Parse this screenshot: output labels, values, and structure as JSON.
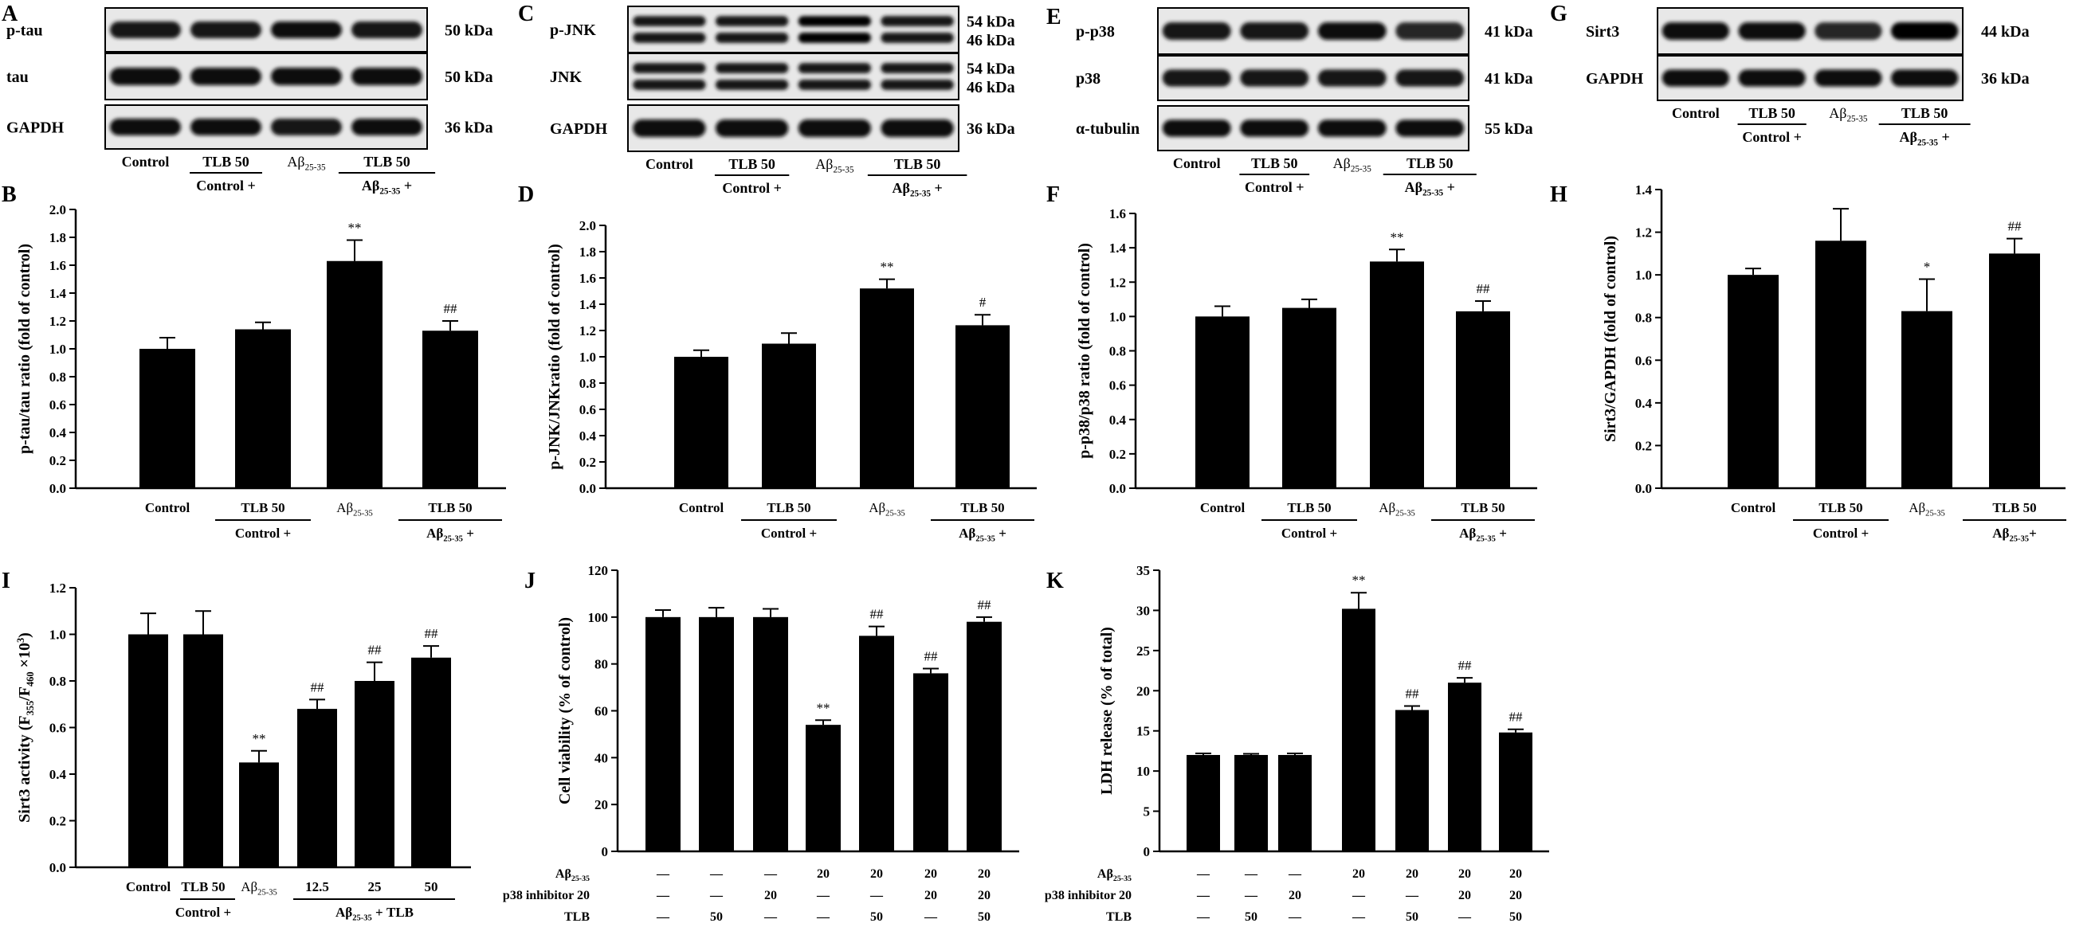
{
  "blots": [
    {
      "letter": "A",
      "rows": [
        {
          "label": "p-tau",
          "kda": [
            "50 kDa"
          ],
          "bands": 1
        },
        {
          "label": "tau",
          "kda": [
            "50 kDa"
          ],
          "bands": 1
        },
        {
          "label": "GAPDH",
          "kda": [
            "36 kDa"
          ],
          "bands": 1
        }
      ],
      "lanes": [
        "Control",
        "TLB 50",
        "Aβ25-35",
        "TLB 50"
      ],
      "group_labels": [
        "Control +",
        "Aβ25-35 +"
      ],
      "band_intensity": [
        [
          0.8,
          0.85,
          0.9,
          0.85
        ],
        [
          0.9,
          0.9,
          0.9,
          0.9
        ],
        [
          0.9,
          0.9,
          0.85,
          0.9
        ]
      ]
    },
    {
      "letter": "C",
      "rows": [
        {
          "label": "p-JNK",
          "kda": [
            "54 kDa",
            "46 kDa"
          ],
          "bands": 2
        },
        {
          "label": "JNK",
          "kda": [
            "54 kDa",
            "46 kDa"
          ],
          "bands": 2
        },
        {
          "label": "GAPDH",
          "kda": [
            "36 kDa"
          ],
          "bands": 1
        }
      ],
      "lanes": [
        "Control",
        "TLB 50",
        "Aβ25-35",
        "TLB 50"
      ],
      "group_labels": [
        "Control +",
        "Aβ25-35 +"
      ],
      "band_intensity": [
        [
          0.8,
          0.85,
          0.95,
          0.85
        ],
        [
          0.85,
          0.85,
          0.85,
          0.85
        ],
        [
          0.9,
          0.9,
          0.9,
          0.9
        ]
      ]
    },
    {
      "letter": "E",
      "rows": [
        {
          "label": "p-p38",
          "kda": [
            "41 kDa"
          ],
          "bands": 1
        },
        {
          "label": "p38",
          "kda": [
            "41 kDa"
          ],
          "bands": 1
        },
        {
          "label": "α-tubulin",
          "kda": [
            "55 kDa"
          ],
          "bands": 1
        }
      ],
      "lanes": [
        "Control",
        "TLB 50",
        "Aβ25-35",
        "TLB 50"
      ],
      "group_labels": [
        "Control +",
        "Aβ25-35 +"
      ],
      "band_intensity": [
        [
          0.8,
          0.8,
          0.9,
          0.7
        ],
        [
          0.85,
          0.85,
          0.85,
          0.8
        ],
        [
          0.9,
          0.9,
          0.9,
          0.9
        ]
      ]
    },
    {
      "letter": "G",
      "rows": [
        {
          "label": "Sirt3",
          "kda": [
            "44 kDa"
          ],
          "bands": 1
        },
        {
          "label": "GAPDH",
          "kda": [
            "36 kDa"
          ],
          "bands": 1
        }
      ],
      "lanes": [
        "Control",
        "TLB 50",
        "Aβ25-35",
        "TLB 50"
      ],
      "group_labels": [
        "Control +",
        "Aβ25-35 +"
      ],
      "band_intensity": [
        [
          0.9,
          0.9,
          0.7,
          0.95
        ],
        [
          0.9,
          0.9,
          0.9,
          0.9
        ]
      ]
    }
  ],
  "chart_data": [
    {
      "letter": "B",
      "type": "bar",
      "ylabel": "p-tau/tau ratio (fold of control)",
      "ylim": [
        0,
        2.0
      ],
      "ytick_step": 0.2,
      "ytick_decimals": 1,
      "categories": [
        "Control",
        "TLB 50",
        "Aβ25-35",
        "TLB 50"
      ],
      "values": [
        1.0,
        1.14,
        1.63,
        1.13
      ],
      "errors": [
        0.08,
        0.05,
        0.15,
        0.07
      ],
      "annotations": [
        "",
        "",
        "**",
        "##"
      ],
      "group_labels": [
        "Control +",
        "Aβ25-35 +"
      ]
    },
    {
      "letter": "D",
      "type": "bar",
      "ylabel": "p-JNK/JNKratio (fold of control)",
      "ylim": [
        0,
        2.0
      ],
      "ytick_step": 0.2,
      "ytick_decimals": 1,
      "categories": [
        "Control",
        "TLB 50",
        "Aβ25-35",
        "TLB 50"
      ],
      "values": [
        1.0,
        1.1,
        1.52,
        1.24
      ],
      "errors": [
        0.05,
        0.08,
        0.07,
        0.08
      ],
      "annotations": [
        "",
        "",
        "**",
        "#"
      ],
      "group_labels": [
        "Control +",
        "Aβ25-35 +"
      ]
    },
    {
      "letter": "F",
      "type": "bar",
      "ylabel": "p-p38/p38 ratio (fold of control)",
      "ylim": [
        0,
        1.6
      ],
      "ytick_step": 0.2,
      "ytick_decimals": 1,
      "categories": [
        "Control",
        "TLB 50",
        "Aβ25-35",
        "TLB 50"
      ],
      "values": [
        1.0,
        1.05,
        1.32,
        1.03
      ],
      "errors": [
        0.06,
        0.05,
        0.07,
        0.06
      ],
      "annotations": [
        "",
        "",
        "**",
        "##"
      ],
      "group_labels": [
        "Control +",
        "Aβ25-35 +"
      ]
    },
    {
      "letter": "H",
      "type": "bar",
      "ylabel": "Sirt3/GAPDH (fold of control)",
      "ylim": [
        0,
        1.4
      ],
      "ytick_step": 0.2,
      "ytick_decimals": 1,
      "categories": [
        "Control",
        "TLB 50",
        "Aβ25-35",
        "TLB 50"
      ],
      "values": [
        1.0,
        1.16,
        0.83,
        1.1
      ],
      "errors": [
        0.03,
        0.15,
        0.15,
        0.07
      ],
      "annotations": [
        "",
        "",
        "*",
        "##"
      ],
      "group_labels": [
        "Control +",
        "Aβ25-35+"
      ]
    },
    {
      "letter": "I",
      "type": "bar",
      "ylabel": "Sirt3 activity (F355/F460 ×10³)",
      "ylim": [
        0,
        1.2
      ],
      "ytick_step": 0.2,
      "ytick_decimals": 1,
      "categories": [
        "Control",
        "TLB 50",
        "Aβ25-35",
        "12.5",
        "25",
        "50"
      ],
      "values": [
        1.0,
        1.0,
        0.45,
        0.68,
        0.8,
        0.9
      ],
      "errors": [
        0.09,
        0.1,
        0.05,
        0.04,
        0.08,
        0.05
      ],
      "annotations": [
        "",
        "",
        "**",
        "##",
        "##",
        "##"
      ],
      "group_labels": [
        "Control +",
        "Aβ25-35 + TLB"
      ]
    },
    {
      "letter": "J",
      "type": "bar",
      "ylabel": "Cell viability (% of control)",
      "ylim": [
        0,
        120
      ],
      "ytick_step": 20,
      "ytick_decimals": 0,
      "values": [
        100,
        100,
        100,
        54,
        92,
        76,
        98
      ],
      "errors": [
        3,
        4,
        3.5,
        2,
        4,
        2,
        2
      ],
      "annotations": [
        "",
        "",
        "",
        "**",
        "##",
        "##",
        "##"
      ],
      "condition_rows": [
        {
          "label": "Aβ25-35",
          "cells": [
            "—",
            "—",
            "—",
            "20",
            "20",
            "20",
            "20"
          ]
        },
        {
          "label": "p38 inhibitor 20",
          "cells": [
            "—",
            "—",
            "20",
            "—",
            "—",
            "20",
            "20"
          ]
        },
        {
          "label": "TLB",
          "cells": [
            "—",
            "50",
            "—",
            "—",
            "50",
            "—",
            "50"
          ]
        }
      ]
    },
    {
      "letter": "K",
      "type": "bar",
      "ylabel": "LDH release (% of total)",
      "ylim": [
        0,
        35
      ],
      "ytick_step": 5,
      "ytick_decimals": 0,
      "values": [
        12,
        12,
        12,
        30.2,
        17.6,
        21,
        14.8
      ],
      "errors": [
        0.2,
        0.15,
        0.2,
        2,
        0.5,
        0.6,
        0.4
      ],
      "annotations": [
        "",
        "",
        "",
        "**",
        "##",
        "##",
        "##"
      ],
      "condition_rows": [
        {
          "label": "Aβ25-35",
          "cells": [
            "—",
            "—",
            "—",
            "20",
            "20",
            "20",
            "20"
          ]
        },
        {
          "label": "p38 inhibitor 20",
          "cells": [
            "—",
            "—",
            "20",
            "—",
            "—",
            "20",
            "20"
          ]
        },
        {
          "label": "TLB",
          "cells": [
            "—",
            "50",
            "—",
            "—",
            "50",
            "—",
            "50"
          ]
        }
      ]
    }
  ]
}
